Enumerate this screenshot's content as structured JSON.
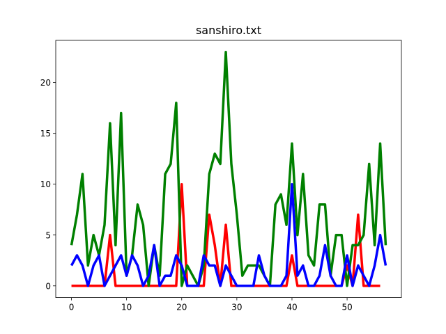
{
  "chart_data": {
    "type": "line",
    "title": "sanshiro.txt",
    "xlabel": "",
    "ylabel": "",
    "xlim": [
      -2.85,
      59.85
    ],
    "ylim": [
      -1.15,
      24.15
    ],
    "xticks": [
      0,
      10,
      20,
      30,
      40,
      50
    ],
    "yticks": [
      0,
      5,
      10,
      15,
      20
    ],
    "grid": false,
    "series": [
      {
        "color": "#ff0000",
        "x": [
          0,
          1,
          2,
          3,
          4,
          5,
          6,
          7,
          8,
          9,
          10,
          11,
          12,
          13,
          14,
          15,
          16,
          17,
          18,
          19,
          20,
          21,
          22,
          23,
          24,
          25,
          26,
          27,
          28,
          29,
          30,
          31,
          32,
          33,
          34,
          35,
          36,
          37,
          38,
          39,
          40,
          41,
          42,
          43,
          44,
          45,
          46,
          47,
          48,
          49,
          50,
          51,
          52,
          53,
          54,
          55,
          56
        ],
        "values": [
          0,
          0,
          0,
          0,
          0,
          0,
          0,
          5,
          0,
          0,
          0,
          0,
          0,
          0,
          0,
          0,
          0,
          0,
          0,
          0,
          10,
          0,
          0,
          0,
          0,
          7,
          4,
          0,
          6,
          0,
          0,
          0,
          0,
          0,
          0,
          0,
          0,
          0,
          0,
          0,
          3,
          0,
          0,
          0,
          0,
          0,
          0,
          0,
          0,
          0,
          2,
          0,
          7,
          0,
          0,
          0,
          0
        ]
      },
      {
        "color": "#008000",
        "x": [
          0,
          1,
          2,
          3,
          4,
          5,
          6,
          7,
          8,
          9,
          10,
          11,
          12,
          13,
          14,
          15,
          16,
          17,
          18,
          19,
          20,
          21,
          22,
          23,
          24,
          25,
          26,
          27,
          28,
          29,
          30,
          31,
          32,
          33,
          34,
          35,
          36,
          37,
          38,
          39,
          40,
          41,
          42,
          43,
          44,
          45,
          46,
          47,
          48,
          49,
          50,
          51,
          52,
          53,
          54,
          55,
          56,
          57
        ],
        "values": [
          4,
          7,
          11,
          2,
          5,
          3,
          6,
          16,
          4,
          17,
          1,
          3,
          8,
          6,
          0,
          4,
          1,
          11,
          12,
          18,
          0,
          2,
          1,
          0,
          2,
          11,
          13,
          12,
          23,
          12,
          7,
          1,
          2,
          2,
          2,
          1,
          0,
          8,
          9,
          6,
          14,
          5,
          11,
          3,
          2,
          8,
          8,
          1,
          5,
          5,
          0,
          4,
          4,
          5,
          12,
          4,
          14,
          4
        ]
      },
      {
        "color": "#0000ff",
        "x": [
          0,
          1,
          2,
          3,
          4,
          5,
          6,
          7,
          8,
          9,
          10,
          11,
          12,
          13,
          14,
          15,
          16,
          17,
          18,
          19,
          20,
          21,
          22,
          23,
          24,
          25,
          26,
          27,
          28,
          29,
          30,
          31,
          32,
          33,
          34,
          35,
          36,
          37,
          38,
          39,
          40,
          41,
          42,
          43,
          44,
          45,
          46,
          47,
          48,
          49,
          50,
          51,
          52,
          53,
          54,
          55,
          56,
          57
        ],
        "values": [
          2,
          3,
          2,
          0,
          2,
          3,
          0,
          1,
          2,
          3,
          1,
          3,
          2,
          0,
          1,
          4,
          0,
          1,
          1,
          3,
          2,
          0,
          0,
          0,
          3,
          2,
          2,
          0,
          2,
          1,
          0,
          0,
          0,
          0,
          3,
          1,
          0,
          0,
          0,
          1,
          10,
          1,
          2,
          0,
          0,
          1,
          4,
          1,
          0,
          0,
          3,
          0,
          2,
          1,
          0,
          2,
          5,
          2
        ]
      }
    ]
  }
}
